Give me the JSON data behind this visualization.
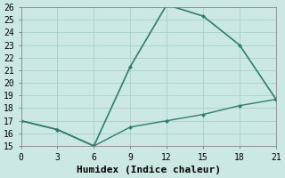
{
  "xlabel": "Humidex (Indice chaleur)",
  "x_upper": [
    0,
    3,
    6,
    9,
    12,
    15,
    18,
    21
  ],
  "y_upper": [
    17,
    16.3,
    15,
    21.3,
    26.2,
    25.3,
    23,
    18.7
  ],
  "x_lower": [
    0,
    3,
    6,
    9,
    12,
    15,
    18,
    21
  ],
  "y_lower": [
    17,
    16.3,
    15,
    16.5,
    17.0,
    17.5,
    18.2,
    18.7
  ],
  "line_color": "#2e7d6e",
  "bg_color": "#cce8e4",
  "grid_color": "#aad4cf",
  "ylim": [
    15,
    26
  ],
  "xlim": [
    0,
    21
  ],
  "yticks": [
    15,
    16,
    17,
    18,
    19,
    20,
    21,
    22,
    23,
    24,
    25,
    26
  ],
  "xticks": [
    0,
    3,
    6,
    9,
    12,
    15,
    18,
    21
  ],
  "tick_fontsize": 7,
  "label_fontsize": 8
}
